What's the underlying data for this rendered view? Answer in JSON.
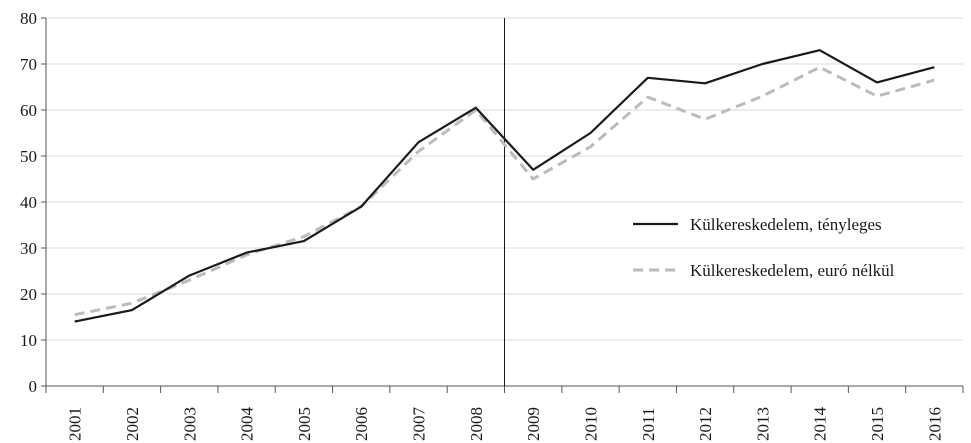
{
  "chart_data": {
    "type": "line",
    "title": "",
    "xlabel": "",
    "ylabel": "",
    "categories": [
      "2001",
      "2002",
      "2003",
      "2004",
      "2005",
      "2006",
      "2007",
      "2008",
      "2009",
      "2010",
      "2011",
      "2012",
      "2013",
      "2014",
      "2015",
      "2016"
    ],
    "ylim": [
      0,
      80
    ],
    "yticks": [
      0,
      10,
      20,
      30,
      40,
      50,
      60,
      70,
      80
    ],
    "grid": "horizontal",
    "vertical_marker_between": [
      "2008",
      "2009"
    ],
    "legend_position": "right",
    "series": [
      {
        "name": "Külkereskedelem, tényleges",
        "style": "solid",
        "color": "#1a1a1a",
        "values": [
          14.0,
          16.5,
          24.0,
          29.0,
          31.5,
          39.0,
          53.0,
          60.5,
          47.0,
          55.0,
          67.0,
          65.8,
          70.0,
          73.0,
          66.0,
          69.3
        ]
      },
      {
        "name": "Külkereskedelem, euró nélkül",
        "style": "dashed",
        "color": "#bbbbbb",
        "values": [
          15.5,
          18.0,
          23.0,
          28.5,
          32.5,
          39.0,
          51.0,
          60.0,
          45.0,
          52.0,
          62.8,
          58.0,
          63.0,
          69.3,
          63.0,
          66.5
        ]
      }
    ]
  }
}
